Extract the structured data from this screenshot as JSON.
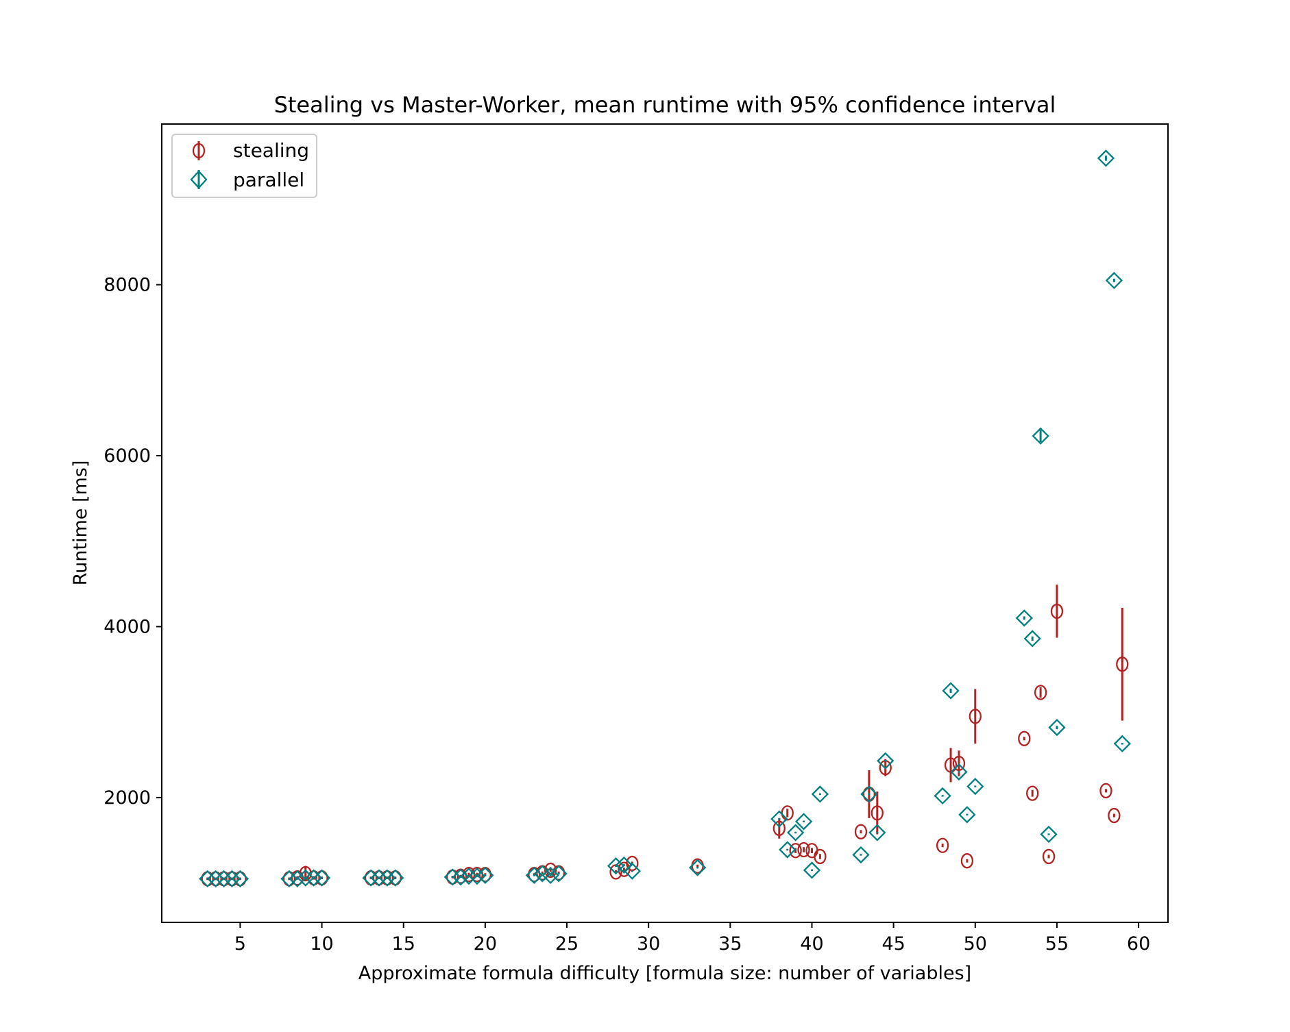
{
  "colors": {
    "stealing": "#b22222",
    "parallel": "#008080",
    "axes": "#000000",
    "legend_border": "#cccccc",
    "background": "#ffffff"
  },
  "chart_data": {
    "type": "scatter",
    "title": "Stealing vs Master-Worker, mean runtime with 95% confidence interval",
    "xlabel": "Approximate formula difficulty [formula size: number of variables]",
    "ylabel": "Runtime [ms]",
    "xlim": [
      0.2,
      61.8
    ],
    "ylim": [
      540,
      9880
    ],
    "xticks": [
      5,
      10,
      15,
      20,
      25,
      30,
      35,
      40,
      45,
      50,
      55,
      60
    ],
    "yticks": [
      2000,
      4000,
      6000,
      8000
    ],
    "grid": false,
    "legend_position": "top-left",
    "series": [
      {
        "name": "stealing",
        "marker": "circle",
        "points": [
          {
            "x": 3.0,
            "y": 1050,
            "err": 15
          },
          {
            "x": 3.5,
            "y": 1050,
            "err": 15
          },
          {
            "x": 4.0,
            "y": 1050,
            "err": 15
          },
          {
            "x": 4.5,
            "y": 1050,
            "err": 15
          },
          {
            "x": 5.0,
            "y": 1050,
            "err": 15
          },
          {
            "x": 8.0,
            "y": 1050,
            "err": 15
          },
          {
            "x": 8.5,
            "y": 1060,
            "err": 20
          },
          {
            "x": 9.0,
            "y": 1110,
            "err": 90
          },
          {
            "x": 9.5,
            "y": 1060,
            "err": 20
          },
          {
            "x": 10.0,
            "y": 1060,
            "err": 15
          },
          {
            "x": 13.0,
            "y": 1060,
            "err": 15
          },
          {
            "x": 13.5,
            "y": 1060,
            "err": 15
          },
          {
            "x": 14.0,
            "y": 1060,
            "err": 15
          },
          {
            "x": 14.5,
            "y": 1060,
            "err": 15
          },
          {
            "x": 18.0,
            "y": 1070,
            "err": 15
          },
          {
            "x": 18.5,
            "y": 1080,
            "err": 15
          },
          {
            "x": 19.0,
            "y": 1100,
            "err": 20
          },
          {
            "x": 19.5,
            "y": 1100,
            "err": 20
          },
          {
            "x": 20.0,
            "y": 1100,
            "err": 15
          },
          {
            "x": 23.0,
            "y": 1100,
            "err": 15
          },
          {
            "x": 23.5,
            "y": 1120,
            "err": 15
          },
          {
            "x": 24.0,
            "y": 1150,
            "err": 20
          },
          {
            "x": 24.5,
            "y": 1120,
            "err": 15
          },
          {
            "x": 28.0,
            "y": 1130,
            "err": 20
          },
          {
            "x": 28.5,
            "y": 1160,
            "err": 20
          },
          {
            "x": 29.0,
            "y": 1230,
            "err": 20
          },
          {
            "x": 33.0,
            "y": 1200,
            "err": 15
          },
          {
            "x": 38.0,
            "y": 1640,
            "err": 120
          },
          {
            "x": 38.5,
            "y": 1820,
            "err": 50
          },
          {
            "x": 39.0,
            "y": 1380,
            "err": 30
          },
          {
            "x": 39.5,
            "y": 1390,
            "err": 30
          },
          {
            "x": 40.0,
            "y": 1380,
            "err": 30
          },
          {
            "x": 40.5,
            "y": 1310,
            "err": 30
          },
          {
            "x": 43.0,
            "y": 1600,
            "err": 20
          },
          {
            "x": 43.5,
            "y": 2040,
            "err": 280
          },
          {
            "x": 44.0,
            "y": 1820,
            "err": 250
          },
          {
            "x": 44.5,
            "y": 2350,
            "err": 100
          },
          {
            "x": 48.0,
            "y": 1440,
            "err": 20
          },
          {
            "x": 48.5,
            "y": 2380,
            "err": 200
          },
          {
            "x": 49.0,
            "y": 2400,
            "err": 150
          },
          {
            "x": 49.5,
            "y": 1260,
            "err": 20
          },
          {
            "x": 50.0,
            "y": 2950,
            "err": 320
          },
          {
            "x": 53.0,
            "y": 2690,
            "err": 20
          },
          {
            "x": 53.5,
            "y": 2050,
            "err": 40
          },
          {
            "x": 54.0,
            "y": 3230,
            "err": 60
          },
          {
            "x": 54.5,
            "y": 1310,
            "err": 20
          },
          {
            "x": 55.0,
            "y": 4180,
            "err": 310
          },
          {
            "x": 58.0,
            "y": 2080,
            "err": 20
          },
          {
            "x": 58.5,
            "y": 1790,
            "err": 20
          },
          {
            "x": 59.0,
            "y": 3560,
            "err": 660
          }
        ]
      },
      {
        "name": "parallel",
        "marker": "diamond",
        "points": [
          {
            "x": 3.0,
            "y": 1050,
            "err": 10
          },
          {
            "x": 3.5,
            "y": 1050,
            "err": 10
          },
          {
            "x": 4.0,
            "y": 1050,
            "err": 10
          },
          {
            "x": 4.5,
            "y": 1050,
            "err": 10
          },
          {
            "x": 5.0,
            "y": 1050,
            "err": 10
          },
          {
            "x": 8.0,
            "y": 1050,
            "err": 10
          },
          {
            "x": 8.5,
            "y": 1050,
            "err": 10
          },
          {
            "x": 9.0,
            "y": 1060,
            "err": 10
          },
          {
            "x": 9.5,
            "y": 1060,
            "err": 10
          },
          {
            "x": 10.0,
            "y": 1060,
            "err": 10
          },
          {
            "x": 13.0,
            "y": 1060,
            "err": 10
          },
          {
            "x": 13.5,
            "y": 1060,
            "err": 10
          },
          {
            "x": 14.0,
            "y": 1060,
            "err": 10
          },
          {
            "x": 14.5,
            "y": 1060,
            "err": 10
          },
          {
            "x": 18.0,
            "y": 1070,
            "err": 10
          },
          {
            "x": 18.5,
            "y": 1070,
            "err": 10
          },
          {
            "x": 19.0,
            "y": 1080,
            "err": 10
          },
          {
            "x": 19.5,
            "y": 1080,
            "err": 10
          },
          {
            "x": 20.0,
            "y": 1090,
            "err": 10
          },
          {
            "x": 23.0,
            "y": 1090,
            "err": 10
          },
          {
            "x": 23.5,
            "y": 1110,
            "err": 10
          },
          {
            "x": 24.0,
            "y": 1090,
            "err": 10
          },
          {
            "x": 24.5,
            "y": 1110,
            "err": 10
          },
          {
            "x": 28.0,
            "y": 1200,
            "err": 10
          },
          {
            "x": 28.5,
            "y": 1210,
            "err": 10
          },
          {
            "x": 29.0,
            "y": 1140,
            "err": 10
          },
          {
            "x": 33.0,
            "y": 1180,
            "err": 10
          },
          {
            "x": 38.0,
            "y": 1750,
            "err": 10
          },
          {
            "x": 38.5,
            "y": 1390,
            "err": 10
          },
          {
            "x": 39.0,
            "y": 1590,
            "err": 10
          },
          {
            "x": 39.5,
            "y": 1720,
            "err": 10
          },
          {
            "x": 40.0,
            "y": 1150,
            "err": 10
          },
          {
            "x": 40.5,
            "y": 2040,
            "err": 10
          },
          {
            "x": 43.0,
            "y": 1330,
            "err": 10
          },
          {
            "x": 43.5,
            "y": 2040,
            "err": 10
          },
          {
            "x": 44.0,
            "y": 1590,
            "err": 10
          },
          {
            "x": 44.5,
            "y": 2430,
            "err": 10
          },
          {
            "x": 48.0,
            "y": 2020,
            "err": 10
          },
          {
            "x": 48.5,
            "y": 3250,
            "err": 25
          },
          {
            "x": 49.0,
            "y": 2300,
            "err": 10
          },
          {
            "x": 49.5,
            "y": 1800,
            "err": 10
          },
          {
            "x": 50.0,
            "y": 2130,
            "err": 10
          },
          {
            "x": 53.0,
            "y": 4100,
            "err": 20
          },
          {
            "x": 53.5,
            "y": 3860,
            "err": 25
          },
          {
            "x": 54.0,
            "y": 6230,
            "err": 70
          },
          {
            "x": 54.5,
            "y": 1570,
            "err": 10
          },
          {
            "x": 55.0,
            "y": 2820,
            "err": 20
          },
          {
            "x": 58.0,
            "y": 9480,
            "err": 30
          },
          {
            "x": 58.5,
            "y": 8050,
            "err": 20
          },
          {
            "x": 59.0,
            "y": 2630,
            "err": 10
          }
        ]
      }
    ]
  }
}
